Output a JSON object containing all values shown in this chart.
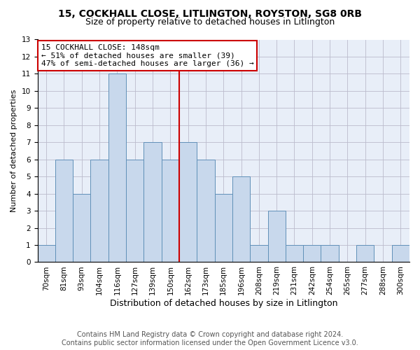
{
  "title": "15, COCKHALL CLOSE, LITLINGTON, ROYSTON, SG8 0RB",
  "subtitle": "Size of property relative to detached houses in Litlington",
  "xlabel": "Distribution of detached houses by size in Litlington",
  "ylabel": "Number of detached properties",
  "bar_labels": [
    "70sqm",
    "81sqm",
    "93sqm",
    "104sqm",
    "116sqm",
    "127sqm",
    "139sqm",
    "150sqm",
    "162sqm",
    "173sqm",
    "185sqm",
    "196sqm",
    "208sqm",
    "219sqm",
    "231sqm",
    "242sqm",
    "254sqm",
    "265sqm",
    "277sqm",
    "288sqm",
    "300sqm"
  ],
  "bar_values": [
    1,
    6,
    4,
    6,
    11,
    6,
    7,
    6,
    7,
    6,
    4,
    5,
    1,
    3,
    1,
    1,
    1,
    0,
    1,
    0,
    1
  ],
  "bar_color": "#c8d8ec",
  "bar_edge_color": "#6090b8",
  "property_line_x": 7.5,
  "annotation_line1": "15 COCKHALL CLOSE: 148sqm",
  "annotation_line2": "← 51% of detached houses are smaller (39)",
  "annotation_line3": "47% of semi-detached houses are larger (36) →",
  "annotation_box_color": "#cc0000",
  "vline_color": "#cc0000",
  "ylim_max": 13,
  "yticks": [
    0,
    1,
    2,
    3,
    4,
    5,
    6,
    7,
    8,
    9,
    10,
    11,
    12,
    13
  ],
  "grid_color": "#bbbbcc",
  "bg_color": "#e8eef8",
  "footer_line1": "Contains HM Land Registry data © Crown copyright and database right 2024.",
  "footer_line2": "Contains public sector information licensed under the Open Government Licence v3.0.",
  "title_fontsize": 10,
  "subtitle_fontsize": 9,
  "xlabel_fontsize": 9,
  "ylabel_fontsize": 8,
  "tick_fontsize": 7.5,
  "footer_fontsize": 7,
  "annotation_fontsize": 8
}
